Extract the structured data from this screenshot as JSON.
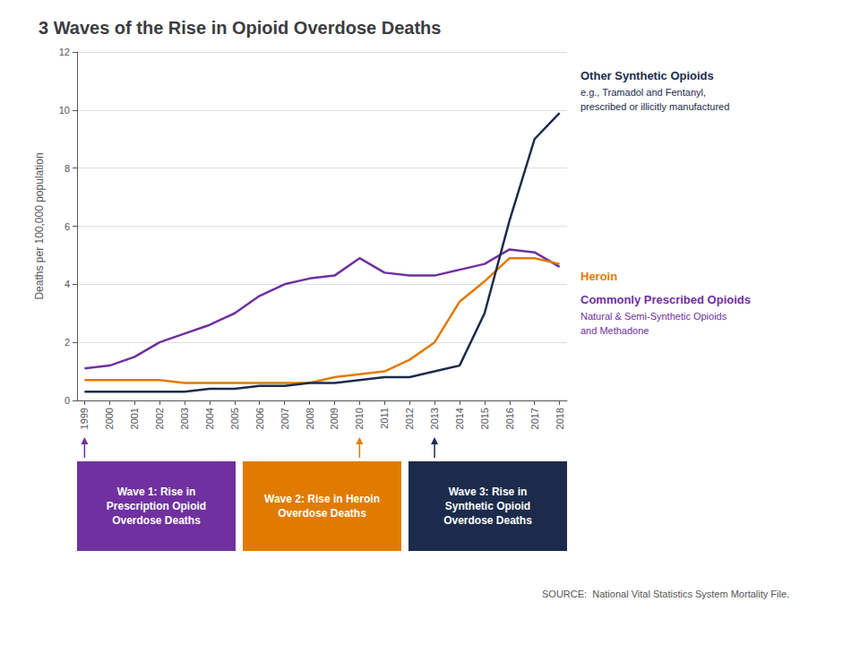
{
  "chart_data": {
    "type": "line",
    "title": "3 Waves of the Rise in Opioid Overdose Deaths",
    "ylabel": "Deaths per 100,000 population",
    "x": [
      1999,
      2000,
      2001,
      2002,
      2003,
      2004,
      2005,
      2006,
      2007,
      2008,
      2009,
      2010,
      2011,
      2012,
      2013,
      2014,
      2015,
      2016,
      2017,
      2018
    ],
    "xlim": [
      1998.7,
      2018.3
    ],
    "xticks": [
      1999,
      2000,
      2001,
      2002,
      2003,
      2004,
      2005,
      2006,
      2007,
      2008,
      2009,
      2010,
      2011,
      2012,
      2013,
      2014,
      2015,
      2016,
      2017,
      2018
    ],
    "ylim": [
      0,
      12
    ],
    "yticks": [
      0,
      2,
      4,
      6,
      8,
      10,
      12
    ],
    "grid": true,
    "series": [
      {
        "name": "Commonly Prescribed Opioids",
        "color": "#7030a0",
        "values": [
          1.1,
          1.2,
          1.5,
          2.0,
          2.3,
          2.6,
          3.0,
          3.6,
          4.0,
          4.2,
          4.3,
          4.9,
          4.4,
          4.3,
          4.3,
          4.5,
          4.7,
          5.2,
          5.1,
          4.6
        ],
        "notes": [
          "Natural & Semi-Synthetic Opioids",
          "and Methadone"
        ]
      },
      {
        "name": "Heroin",
        "color": "#e07b00",
        "values": [
          0.7,
          0.7,
          0.7,
          0.7,
          0.6,
          0.6,
          0.6,
          0.6,
          0.6,
          0.6,
          0.8,
          0.9,
          1.0,
          1.4,
          2.0,
          3.4,
          4.1,
          4.9,
          4.9,
          4.7
        ],
        "notes": []
      },
      {
        "name": "Other Synthetic Opioids",
        "color": "#1c2b4b",
        "values": [
          0.3,
          0.3,
          0.3,
          0.3,
          0.3,
          0.4,
          0.4,
          0.5,
          0.5,
          0.6,
          0.6,
          0.7,
          0.8,
          0.8,
          1.0,
          1.2,
          3.0,
          6.2,
          9.0,
          9.9
        ],
        "notes": [
          "e.g., Tramadol and Fentanyl,",
          "prescribed or illicitly manufactured"
        ]
      }
    ],
    "waves": [
      {
        "label": "Wave 1: Rise in\nPrescription Opioid\nOverdose Deaths",
        "year": 1999,
        "color": "#7030a0"
      },
      {
        "label": "Wave 2: Rise in Heroin\nOverdose Deaths",
        "year": 2010,
        "color": "#e07b00"
      },
      {
        "label": "Wave 3: Rise in\nSynthetic Opioid\nOverdose Deaths",
        "year": 2013,
        "color": "#1c2b4b"
      }
    ],
    "source": "SOURCE:  National Vital Statistics System Mortality File."
  }
}
